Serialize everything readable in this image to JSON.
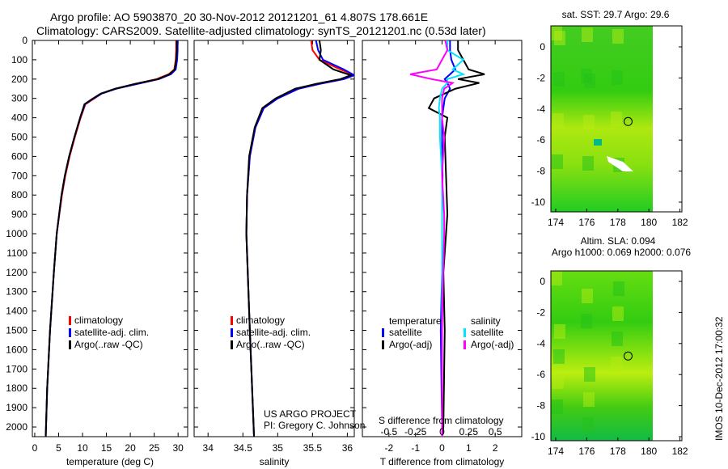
{
  "title_line1": "Argo profile: AO 5903870_20 30-Nov-2012 20121201_61 4.807S 178.661E",
  "title_line2": "Climatology: CARS2009. Satellite-adjusted climatology: synTS_20121201.nc (0.53d later)",
  "credit_line1": "US ARGO PROJECT",
  "credit_line2": "PI: Gregory C. Johnson",
  "side_stamp": "IMOS 10-Dec-2012 17:00:32",
  "colors": {
    "climatology": "#ff0000",
    "satellite": "#0000ff",
    "argo": "#000000",
    "sal_satellite": "#00e5ff",
    "sal_argo": "#ff00ff"
  },
  "chart_data": [
    {
      "type": "line",
      "id": "temperature",
      "xlabel": "temperature (deg C)",
      "xlim": [
        -0.5,
        32
      ],
      "ylim": [
        2050,
        0
      ],
      "xticks": [
        "0",
        "5",
        "10",
        "15",
        "20",
        "25",
        "30"
      ],
      "xtickvals": [
        0,
        5,
        10,
        15,
        20,
        25,
        30
      ],
      "yticks": [
        "0",
        "100",
        "200",
        "300",
        "400",
        "500",
        "600",
        "700",
        "800",
        "900",
        "1000",
        "1100",
        "1200",
        "1300",
        "1400",
        "1500",
        "1600",
        "1700",
        "1800",
        "1900",
        "2000"
      ],
      "depth": [
        0,
        50,
        100,
        150,
        175,
        200,
        225,
        250,
        275,
        300,
        330,
        400,
        500,
        600,
        700,
        800,
        1000,
        1200,
        1500,
        1800,
        2050
      ],
      "legend": [
        "climatology",
        "satellite-adj. clim.",
        "Argo(..raw -QC)"
      ],
      "series": [
        {
          "name": "climatology",
          "values": [
            29.6,
            29.6,
            29.5,
            29.2,
            28,
            25.5,
            21,
            17,
            14,
            12.5,
            10.6,
            9.6,
            8.4,
            7.3,
            6.4,
            5.7,
            4.6,
            4.0,
            3.2,
            2.6,
            2.3
          ]
        },
        {
          "name": "satellite-adj. clim.",
          "values": [
            29.9,
            29.9,
            29.8,
            29.5,
            28.5,
            26,
            21.5,
            17,
            14,
            12.3,
            10.5,
            9.5,
            8.3,
            7.2,
            6.3,
            5.6,
            4.6,
            4.0,
            3.2,
            2.6,
            2.3
          ]
        },
        {
          "name": "Argo(..raw -QC)",
          "values": [
            29.7,
            29.7,
            29.6,
            29.3,
            28.2,
            25.8,
            21,
            16.8,
            13.8,
            12.2,
            10.4,
            9.5,
            8.3,
            7.2,
            6.3,
            5.6,
            4.6,
            4.0,
            3.2,
            2.6,
            2.3
          ]
        }
      ]
    },
    {
      "type": "line",
      "id": "salinity",
      "xlabel": "salinity",
      "xlim": [
        33.8,
        36.1
      ],
      "ylim": [
        2050,
        0
      ],
      "xticks": [
        "34",
        "34.5",
        "35",
        "35.5",
        "36"
      ],
      "xtickvals": [
        34,
        34.5,
        35,
        35.5,
        36
      ],
      "depth": [
        0,
        50,
        100,
        150,
        180,
        200,
        225,
        250,
        300,
        350,
        450,
        600,
        800,
        1000,
        1500,
        2050
      ],
      "legend": [
        "climatology",
        "satellite-adj. clim.",
        "Argo(..raw -QC)"
      ],
      "series": [
        {
          "name": "climatology",
          "values": [
            35.48,
            35.5,
            35.6,
            35.9,
            36.1,
            35.95,
            35.6,
            35.3,
            35.0,
            34.8,
            34.68,
            34.6,
            34.56,
            34.55,
            34.6,
            34.66
          ]
        },
        {
          "name": "satellite-adj. clim.",
          "values": [
            35.55,
            35.58,
            35.65,
            35.95,
            36.1,
            35.95,
            35.6,
            35.3,
            35.0,
            34.8,
            34.68,
            34.6,
            34.56,
            34.55,
            34.6,
            34.66
          ]
        },
        {
          "name": "Argo(..raw -QC)",
          "values": [
            35.6,
            35.62,
            35.6,
            35.8,
            36.05,
            35.9,
            35.55,
            35.25,
            34.97,
            34.78,
            34.67,
            34.59,
            34.56,
            34.55,
            34.6,
            34.66
          ]
        }
      ]
    },
    {
      "type": "line",
      "id": "difference",
      "xlabel": "T difference from climatology",
      "x2label": "S difference from climatology",
      "xlim": [
        -3,
        3
      ],
      "ylim": [
        2050,
        0
      ],
      "xticks": [
        "-2",
        "-1",
        "0",
        "1",
        "2"
      ],
      "xtickvals": [
        -2,
        -1,
        0,
        1,
        2
      ],
      "x2ticks": [
        "-0.5",
        "-0.25",
        "0",
        "0.25",
        "0.5"
      ],
      "x2tickvals": [
        -0.5,
        -0.25,
        0,
        0.25,
        0.5
      ],
      "depth": [
        0,
        50,
        100,
        150,
        175,
        200,
        220,
        250,
        300,
        350,
        400,
        500,
        700,
        900,
        1000,
        1200,
        1500,
        2000,
        2050
      ],
      "legend_titles": [
        "temperature",
        "salinity"
      ],
      "legend": [
        "satellite",
        "Argo(-adj)",
        "satellite",
        "Argo(-adj)"
      ],
      "series": [
        {
          "name": "T satellite",
          "values": [
            0.3,
            0.3,
            0.35,
            0.5,
            0.3,
            0.1,
            0.2,
            0.3,
            0.1,
            0.05,
            0.0,
            0.0,
            0.02,
            0.0,
            0.0,
            0.0,
            -0.05,
            0.0,
            0.0
          ]
        },
        {
          "name": "T Argo(-adj)",
          "values": [
            0.6,
            0.6,
            0.8,
            1.0,
            1.6,
            0.6,
            1.4,
            0.5,
            -0.3,
            -0.5,
            0.2,
            0.1,
            0.15,
            0.2,
            0.15,
            0.05,
            0.1,
            0.05,
            0.0
          ]
        },
        {
          "name": "S satellite",
          "values": [
            0.05,
            0.05,
            0.2,
            0.1,
            0.2,
            0.05,
            0.05,
            0.0,
            -0.02,
            -0.03,
            -0.02,
            -0.02,
            0.0,
            0.0,
            0.0,
            0.0,
            0.0,
            0.0,
            0.0
          ]
        },
        {
          "name": "S Argo(-adj)",
          "values": [
            0.03,
            0.05,
            0.0,
            -0.05,
            -0.3,
            -0.1,
            0.1,
            0.02,
            0.0,
            0.0,
            0.0,
            0.02,
            0.0,
            0.02,
            0.02,
            0.01,
            0.0,
            0.0,
            0.0
          ]
        }
      ]
    },
    {
      "type": "heatmap",
      "id": "sst_map",
      "title": "sat. SST: 29.7 Argo: 29.6",
      "xticks": [
        "174",
        "176",
        "178",
        "180",
        "182"
      ],
      "yticks": [
        "0",
        "-2",
        "-4",
        "-6",
        "-8",
        "-10"
      ],
      "marker": [
        178.661,
        -4.807
      ]
    },
    {
      "type": "heatmap",
      "id": "sla_map",
      "title1": "Altim. SLA: 0.094",
      "title2": "Argo h1000: 0.069 h2000: 0.076",
      "xticks": [
        "174",
        "176",
        "178",
        "180",
        "182"
      ],
      "yticks": [
        "0",
        "-2",
        "-4",
        "-6",
        "-8",
        "-10"
      ],
      "marker": [
        178.661,
        -4.807
      ]
    }
  ]
}
